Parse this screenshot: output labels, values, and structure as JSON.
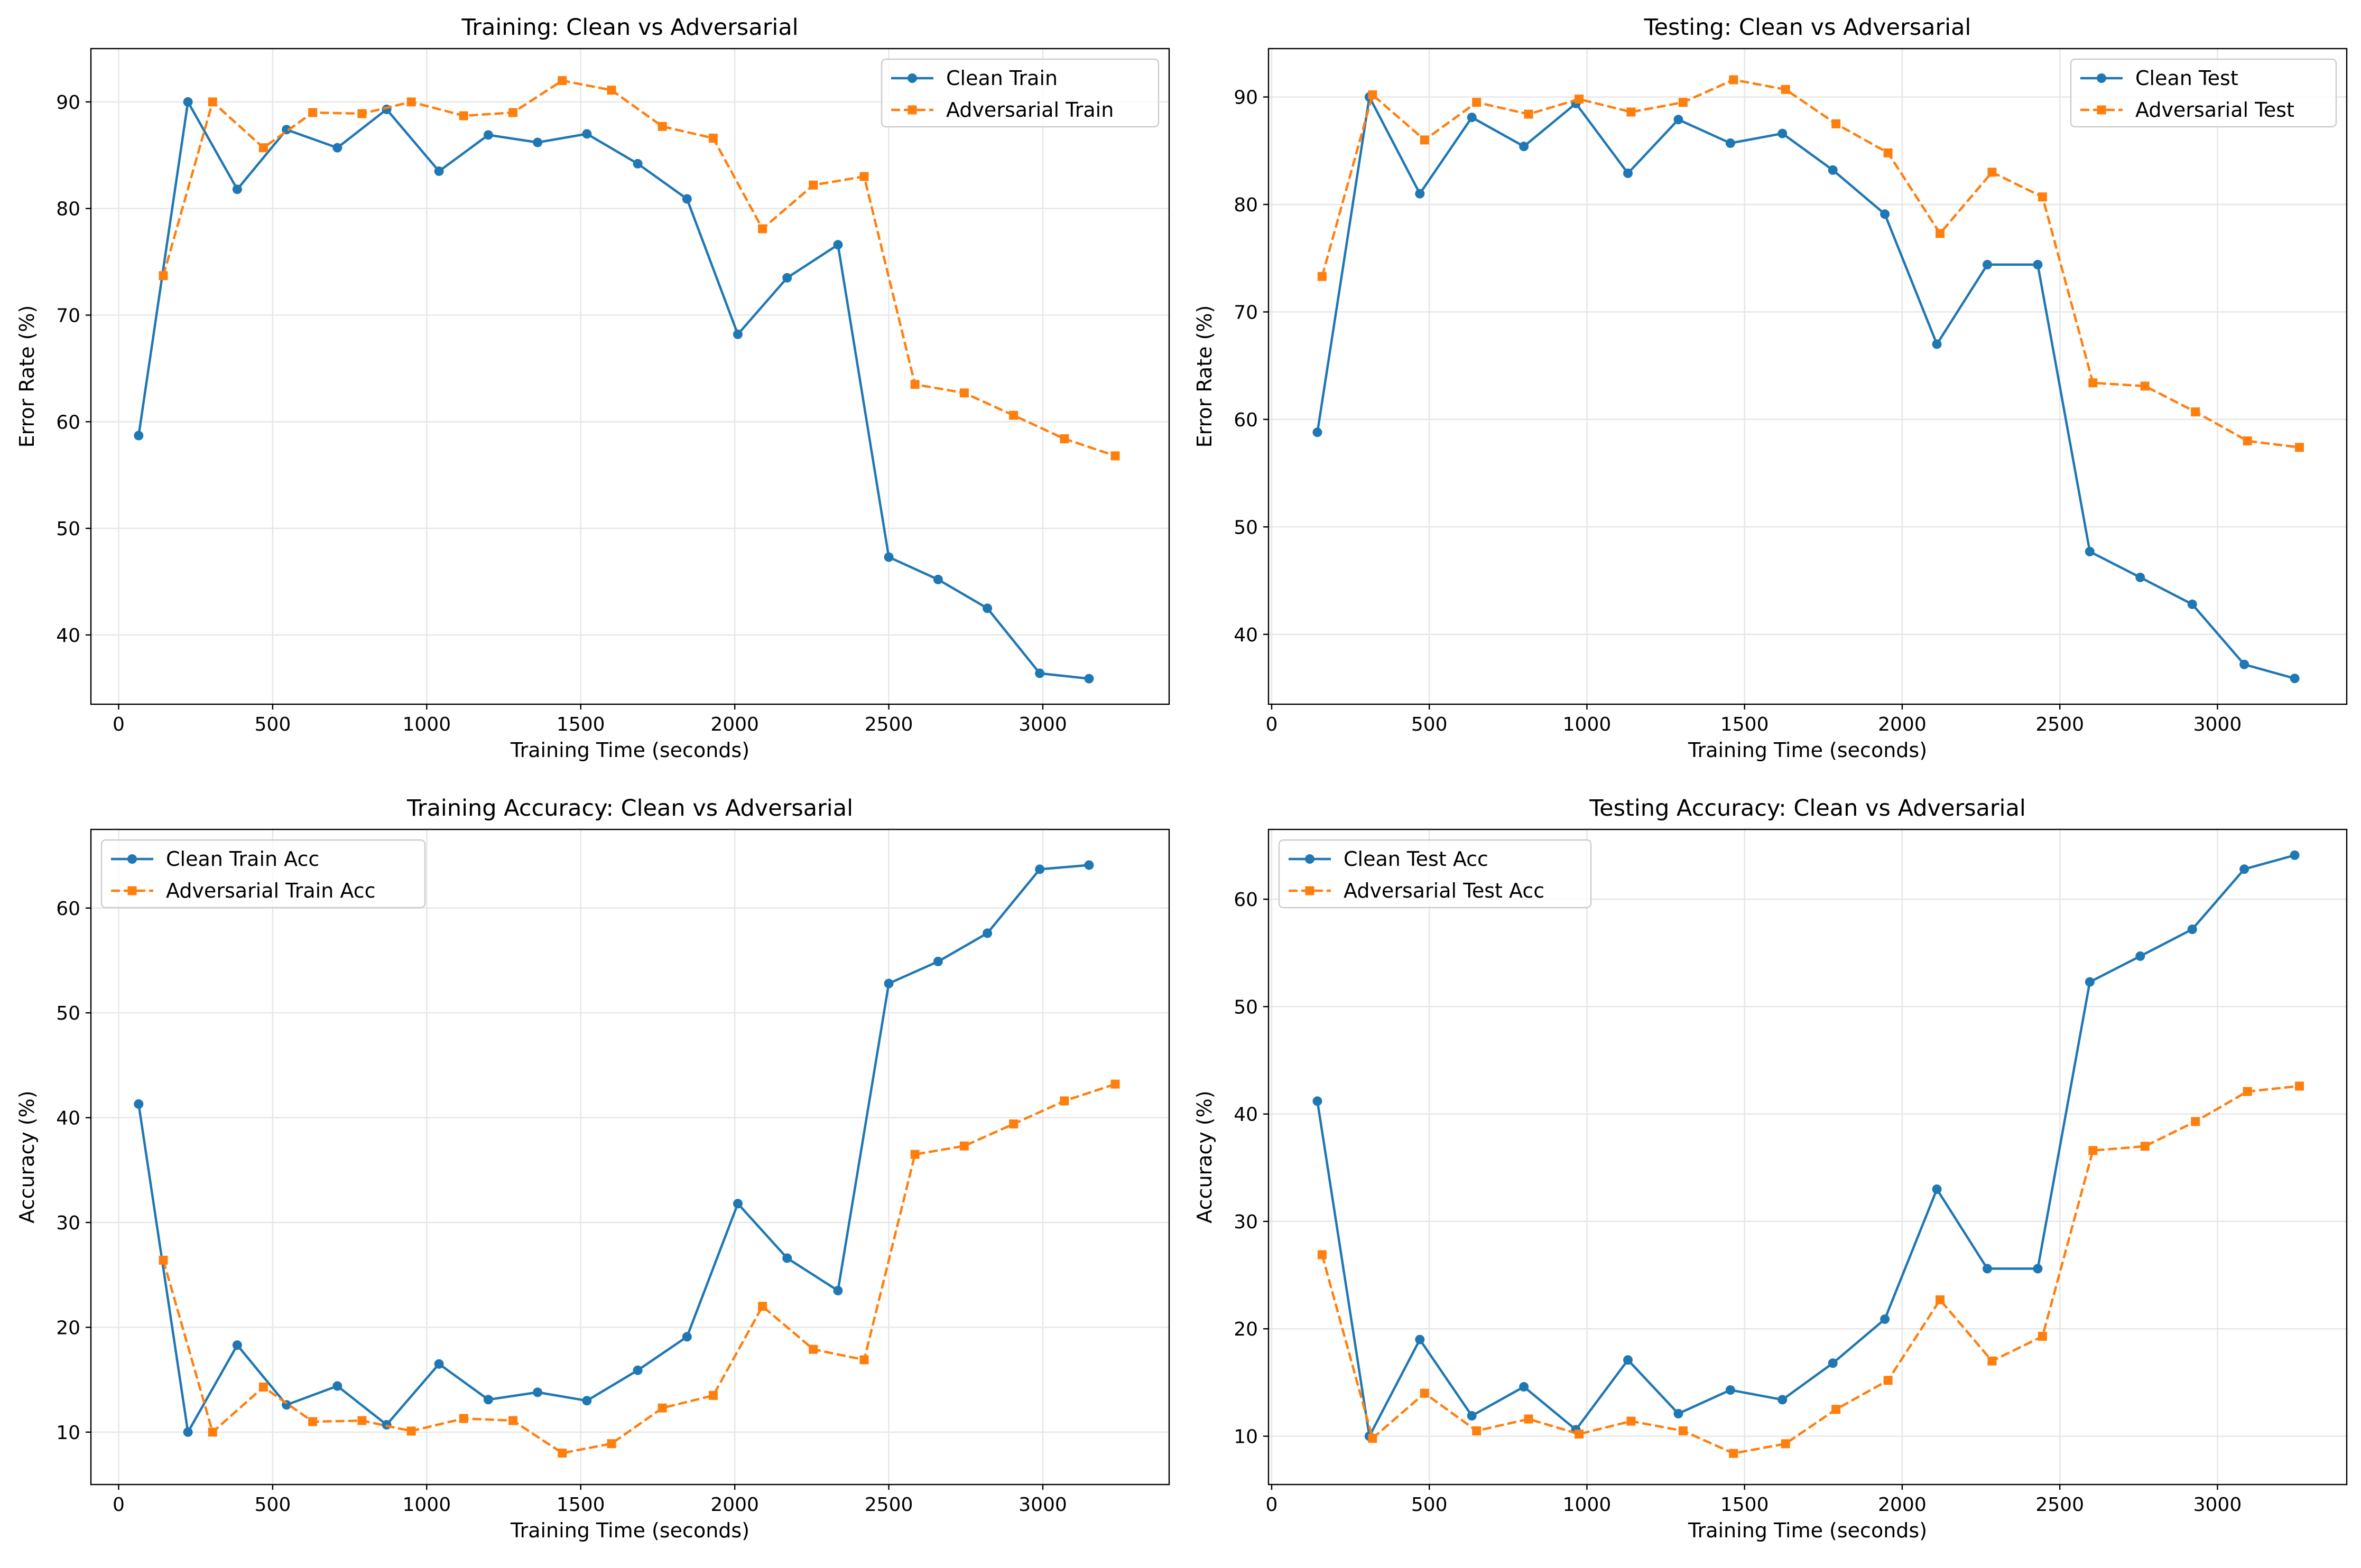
{
  "chart_data": [
    {
      "type": "line",
      "title": "Training: Clean vs Adversarial",
      "xlabel": "Training Time (seconds)",
      "ylabel": "Error Rate (%)",
      "xlim": [
        -90,
        3410
      ],
      "ylim": [
        33.5,
        95
      ],
      "xticks": [
        0,
        500,
        1000,
        1500,
        2000,
        2500,
        3000
      ],
      "yticks": [
        40,
        50,
        60,
        70,
        80,
        90
      ],
      "grid": true,
      "legend_position": "upper-right",
      "series": [
        {
          "name": "Clean Train",
          "color": "#1f77b4",
          "marker": "circle",
          "linestyle": "solid",
          "x": [
            65,
            225,
            385,
            545,
            710,
            870,
            1040,
            1200,
            1360,
            1520,
            1685,
            1845,
            2010,
            2170,
            2335,
            2500,
            2660,
            2820,
            2990,
            3150
          ],
          "y": [
            58.7,
            90.0,
            81.8,
            87.4,
            85.7,
            89.3,
            83.5,
            86.9,
            86.2,
            87.0,
            84.2,
            80.9,
            68.2,
            73.5,
            76.6,
            47.3,
            45.2,
            42.5,
            36.4,
            35.9
          ]
        },
        {
          "name": "Adversarial Train",
          "color": "#ff7f0e",
          "marker": "square",
          "linestyle": "dashed",
          "x": [
            145,
            305,
            470,
            630,
            790,
            950,
            1120,
            1280,
            1440,
            1600,
            1765,
            1930,
            2090,
            2255,
            2420,
            2585,
            2745,
            2905,
            3070,
            3235
          ],
          "y": [
            73.7,
            90.0,
            85.7,
            89.0,
            88.9,
            90.0,
            88.7,
            89.0,
            92.0,
            91.1,
            87.7,
            86.6,
            78.1,
            82.2,
            83.0,
            63.5,
            62.7,
            60.6,
            58.4,
            56.8
          ]
        }
      ]
    },
    {
      "type": "line",
      "title": "Testing: Clean vs Adversarial",
      "xlabel": "Training Time (seconds)",
      "ylabel": "Error Rate (%)",
      "xlim": [
        -10,
        3410
      ],
      "ylim": [
        33.5,
        94.5
      ],
      "xticks": [
        0,
        500,
        1000,
        1500,
        2000,
        2500,
        3000
      ],
      "yticks": [
        40,
        50,
        60,
        70,
        80,
        90
      ],
      "grid": true,
      "legend_position": "upper-right",
      "series": [
        {
          "name": "Clean Test",
          "color": "#1f77b4",
          "marker": "circle",
          "linestyle": "solid",
          "x": [
            145,
            310,
            470,
            635,
            800,
            965,
            1130,
            1290,
            1455,
            1620,
            1780,
            1945,
            2110,
            2270,
            2430,
            2595,
            2755,
            2920,
            3085,
            3245
          ],
          "y": [
            58.8,
            90.0,
            81.0,
            88.1,
            85.4,
            89.4,
            82.9,
            87.9,
            85.7,
            86.6,
            83.2,
            79.1,
            67.0,
            74.4,
            74.4,
            47.7,
            45.3,
            42.8,
            37.2,
            35.9
          ]
        },
        {
          "name": "Adversarial Test",
          "color": "#ff7f0e",
          "marker": "square",
          "linestyle": "dashed",
          "x": [
            160,
            320,
            485,
            650,
            815,
            975,
            1140,
            1305,
            1465,
            1630,
            1790,
            1955,
            2120,
            2285,
            2445,
            2605,
            2770,
            2930,
            3095,
            3260
          ],
          "y": [
            73.3,
            90.2,
            86.0,
            89.5,
            88.4,
            89.8,
            88.6,
            89.5,
            91.6,
            90.7,
            87.5,
            84.8,
            77.3,
            83.0,
            80.7,
            63.4,
            63.1,
            60.7,
            58.0,
            57.4
          ]
        }
      ]
    },
    {
      "type": "line",
      "title": "Training Accuracy: Clean vs Adversarial",
      "xlabel": "Training Time (seconds)",
      "ylabel": "Accuracy (%)",
      "xlim": [
        -90,
        3410
      ],
      "ylim": [
        5.0,
        67.5
      ],
      "xticks": [
        0,
        500,
        1000,
        1500,
        2000,
        2500,
        3000
      ],
      "yticks": [
        10,
        20,
        30,
        40,
        50,
        60
      ],
      "grid": true,
      "legend_position": "upper-left",
      "series": [
        {
          "name": "Clean Train Acc",
          "color": "#1f77b4",
          "marker": "circle",
          "linestyle": "solid",
          "x": [
            65,
            225,
            385,
            545,
            710,
            870,
            1040,
            1200,
            1360,
            1520,
            1685,
            1845,
            2010,
            2170,
            2335,
            2500,
            2660,
            2820,
            2990,
            3150
          ],
          "y": [
            41.3,
            10.0,
            18.3,
            12.6,
            14.4,
            10.7,
            16.5,
            13.1,
            13.8,
            13.0,
            15.9,
            19.1,
            31.8,
            26.6,
            23.5,
            52.8,
            54.9,
            57.6,
            63.7,
            64.1
          ]
        },
        {
          "name": "Adversarial Train Acc",
          "color": "#ff7f0e",
          "marker": "square",
          "linestyle": "dashed",
          "x": [
            145,
            305,
            470,
            630,
            790,
            950,
            1120,
            1280,
            1440,
            1600,
            1765,
            1930,
            2090,
            2255,
            2420,
            2585,
            2745,
            2905,
            3070,
            3235
          ],
          "y": [
            26.4,
            10.0,
            14.3,
            11.0,
            11.1,
            10.1,
            11.3,
            11.1,
            8.0,
            8.9,
            12.3,
            13.5,
            22.0,
            17.9,
            16.9,
            36.5,
            37.3,
            39.4,
            41.6,
            43.2
          ]
        }
      ]
    },
    {
      "type": "line",
      "title": "Testing Accuracy: Clean vs Adversarial",
      "xlabel": "Training Time (seconds)",
      "ylabel": "Accuracy (%)",
      "xlim": [
        -10,
        3410
      ],
      "ylim": [
        5.5,
        66.5
      ],
      "xticks": [
        0,
        500,
        1000,
        1500,
        2000,
        2500,
        3000
      ],
      "yticks": [
        10,
        20,
        30,
        40,
        50,
        60
      ],
      "grid": true,
      "legend_position": "upper-left",
      "series": [
        {
          "name": "Clean Test Acc",
          "color": "#1f77b4",
          "marker": "circle",
          "linestyle": "solid",
          "x": [
            145,
            310,
            470,
            635,
            800,
            965,
            1130,
            1290,
            1455,
            1620,
            1780,
            1945,
            2110,
            2270,
            2430,
            2595,
            2755,
            2920,
            3085,
            3245
          ],
          "y": [
            41.2,
            10.0,
            19.0,
            11.9,
            14.6,
            10.6,
            17.1,
            12.1,
            14.3,
            13.4,
            16.8,
            20.9,
            33.0,
            25.6,
            25.6,
            52.3,
            54.7,
            57.2,
            62.8,
            64.1
          ]
        },
        {
          "name": "Adversarial Test Acc",
          "color": "#ff7f0e",
          "marker": "square",
          "linestyle": "dashed",
          "x": [
            160,
            320,
            485,
            650,
            815,
            975,
            1140,
            1305,
            1465,
            1630,
            1790,
            1955,
            2120,
            2285,
            2445,
            2605,
            2770,
            2930,
            3095,
            3260
          ],
          "y": [
            26.9,
            9.8,
            14.0,
            10.5,
            11.6,
            10.2,
            11.4,
            10.5,
            8.4,
            9.3,
            12.5,
            15.2,
            22.7,
            17.0,
            19.3,
            36.6,
            37.0,
            39.3,
            42.1,
            42.6
          ]
        }
      ]
    }
  ]
}
